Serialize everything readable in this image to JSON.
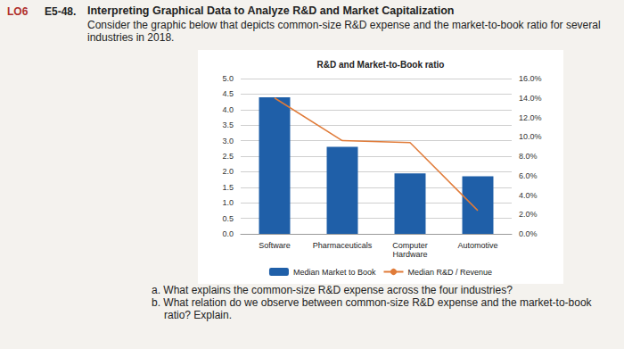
{
  "page": {
    "code": "LO6",
    "exercise": "E5-48.",
    "heading": "Interpreting Graphical Data to Analyze R&D and Market Capitalization",
    "description": "Consider the graphic below that depicts common-size R&D expense and the market-to-book ratio for several industries in 2018.",
    "questions": [
      "a. What explains the common-size R&D expense across the four industries?",
      "b. What relation do we observe between common-size R&D expense and the market-to-book ratio? Explain."
    ]
  },
  "chart_data": {
    "type": "bar",
    "title": "R&D and Market-to-Book ratio",
    "categories": [
      "Software",
      "Pharmaceuticals",
      "Computer\nHardware",
      "Automotive"
    ],
    "series": [
      {
        "name": "Median Market to Book",
        "type": "bar",
        "color": "#1f5fa8",
        "values": [
          4.4,
          2.8,
          1.95,
          1.85
        ]
      },
      {
        "name": "Median R&D / Revenue",
        "type": "line",
        "color": "#e07b39",
        "axis": "y2",
        "values": [
          14.0,
          9.6,
          9.4,
          2.4
        ]
      }
    ],
    "ylim": [
      0,
      5
    ],
    "yticks": [
      {
        "value": 0,
        "label": "0.0"
      },
      {
        "value": 0.5,
        "label": "0.5"
      },
      {
        "value": 1,
        "label": "1.0"
      },
      {
        "value": 1.5,
        "label": "1.5"
      },
      {
        "value": 2,
        "label": "2.0"
      },
      {
        "value": 2.5,
        "label": "2.5"
      },
      {
        "value": 3,
        "label": "3.0"
      },
      {
        "value": 3.5,
        "label": "3.5"
      },
      {
        "value": 4,
        "label": "4.0"
      },
      {
        "value": 4.5,
        "label": "4.5"
      },
      {
        "value": 5,
        "label": "5.0"
      }
    ],
    "y2lim": [
      0,
      16
    ],
    "y2ticks": [
      {
        "value": 0,
        "label": "0.0%"
      },
      {
        "value": 2,
        "label": "2.0%"
      },
      {
        "value": 4,
        "label": "4.0%"
      },
      {
        "value": 6,
        "label": "6.0%"
      },
      {
        "value": 8,
        "label": "8.0%"
      },
      {
        "value": 10,
        "label": "10.0%"
      },
      {
        "value": 12,
        "label": "12.0%"
      },
      {
        "value": 14,
        "label": "14.0%"
      },
      {
        "value": 16,
        "label": "16.0%"
      }
    ],
    "grid": true,
    "legend": "bottom"
  }
}
